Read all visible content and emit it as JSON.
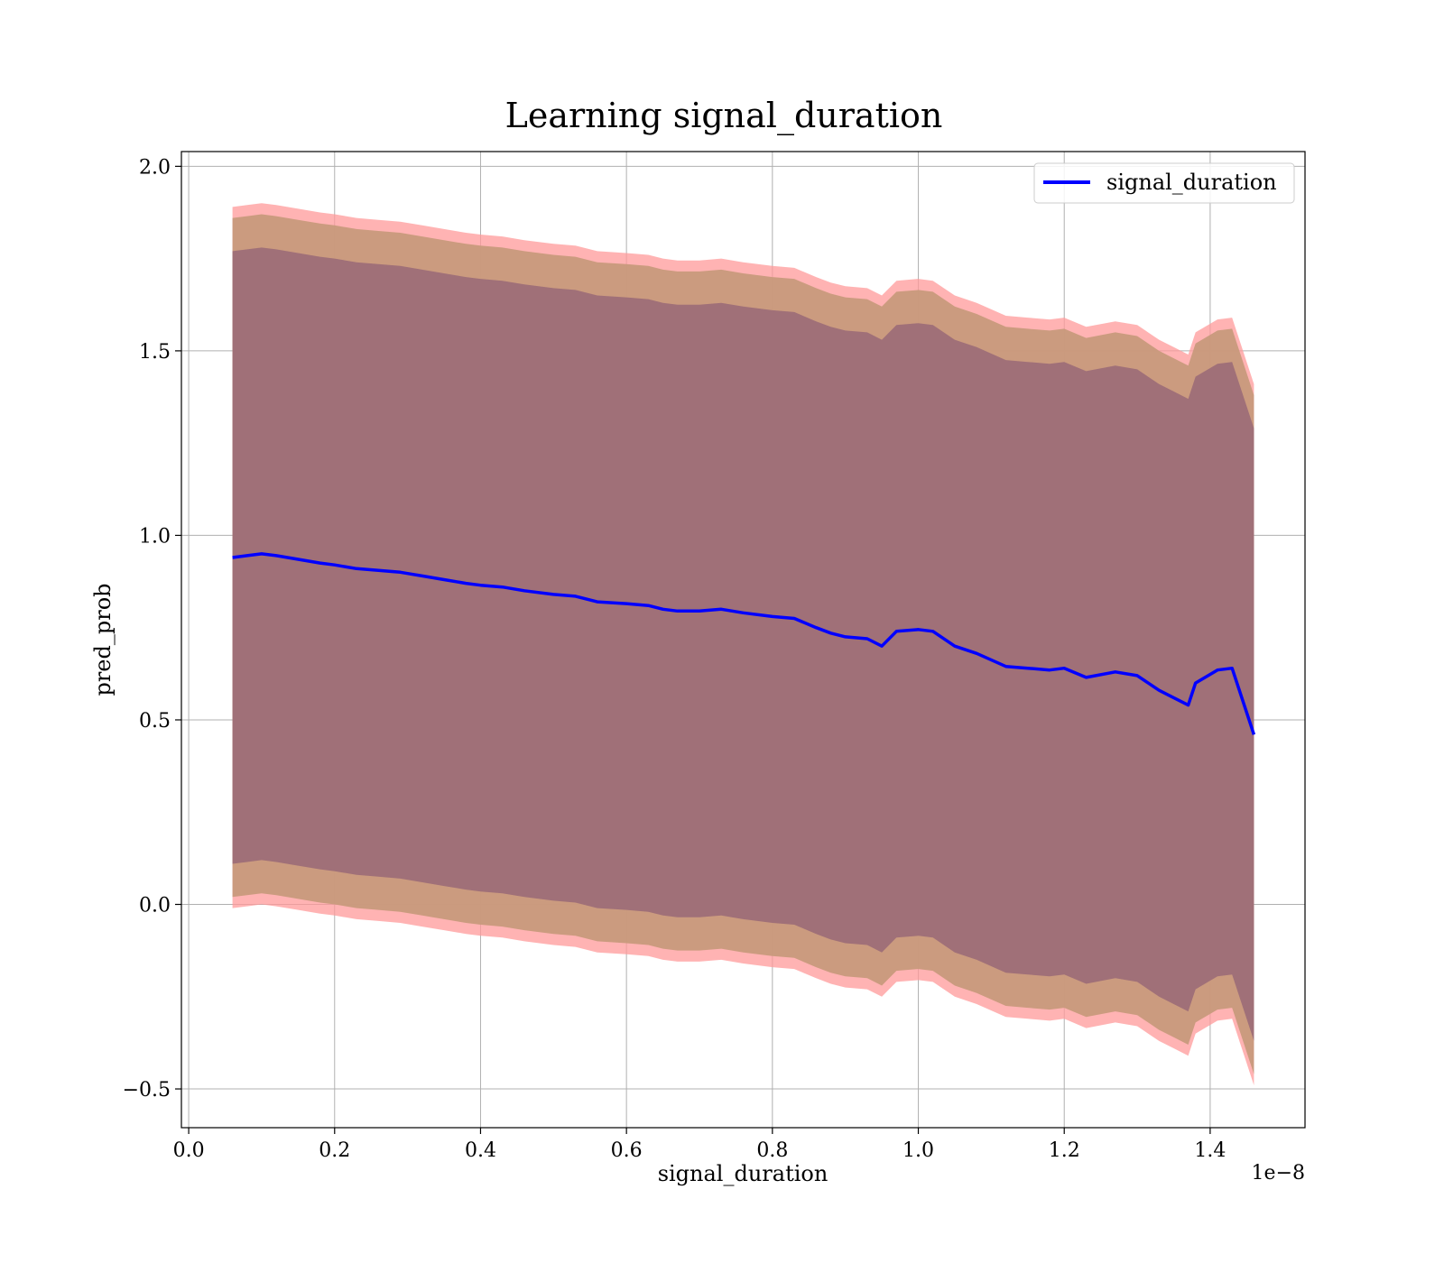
{
  "chart_data": {
    "type": "line",
    "title": "Learning signal_duration",
    "xlabel": "signal_duration",
    "ylabel": "pred_prob",
    "x_offset_label": "1e−8",
    "xlim": [
      -0.01,
      1.53
    ],
    "ylim": [
      -0.605,
      2.04
    ],
    "x_ticks": [
      0.0,
      0.2,
      0.4,
      0.6,
      0.8,
      1.0,
      1.2,
      1.4
    ],
    "x_tick_labels": [
      "0.0",
      "0.2",
      "0.4",
      "0.6",
      "0.8",
      "1.0",
      "1.2",
      "1.4"
    ],
    "y_ticks": [
      -0.5,
      0.0,
      0.5,
      1.0,
      1.5,
      2.0
    ],
    "y_tick_labels": [
      "−0.5",
      "0.0",
      "0.5",
      "1.0",
      "1.5",
      "2.0"
    ],
    "grid": true,
    "legend": {
      "position": "top-right",
      "entries": [
        "signal_duration"
      ]
    },
    "colors": {
      "line": "#0000ff",
      "band_outer": "#ff9999",
      "band_middle": "#c89a7c",
      "band_inner": "#a07078"
    },
    "series": [
      {
        "name": "signal_duration",
        "x": [
          0.06,
          0.08,
          0.1,
          0.12,
          0.15,
          0.18,
          0.2,
          0.23,
          0.26,
          0.29,
          0.32,
          0.35,
          0.38,
          0.4,
          0.43,
          0.46,
          0.5,
          0.53,
          0.56,
          0.6,
          0.63,
          0.65,
          0.67,
          0.7,
          0.73,
          0.76,
          0.8,
          0.83,
          0.86,
          0.88,
          0.9,
          0.93,
          0.95,
          0.97,
          1.0,
          1.02,
          1.05,
          1.08,
          1.12,
          1.15,
          1.18,
          1.2,
          1.23,
          1.27,
          1.3,
          1.33,
          1.35,
          1.37,
          1.38,
          1.41,
          1.43,
          1.46
        ],
        "y": [
          0.94,
          0.945,
          0.95,
          0.945,
          0.935,
          0.925,
          0.92,
          0.91,
          0.905,
          0.9,
          0.89,
          0.88,
          0.87,
          0.865,
          0.86,
          0.85,
          0.84,
          0.835,
          0.82,
          0.815,
          0.81,
          0.8,
          0.795,
          0.795,
          0.8,
          0.79,
          0.78,
          0.775,
          0.75,
          0.735,
          0.725,
          0.72,
          0.7,
          0.74,
          0.745,
          0.74,
          0.7,
          0.68,
          0.645,
          0.64,
          0.635,
          0.64,
          0.615,
          0.63,
          0.62,
          0.58,
          0.56,
          0.54,
          0.6,
          0.635,
          0.64,
          0.46
        ]
      }
    ],
    "bands": [
      {
        "name": "outer",
        "half_width": [
          0.95,
          0.95,
          0.95,
          0.95,
          0.95,
          0.95,
          0.95,
          0.95,
          0.95,
          0.95,
          0.95,
          0.95,
          0.95,
          0.95,
          0.95,
          0.95,
          0.95,
          0.95,
          0.95,
          0.95,
          0.95,
          0.95,
          0.95,
          0.95,
          0.95,
          0.95,
          0.95,
          0.95,
          0.95,
          0.95,
          0.95,
          0.95,
          0.95,
          0.95,
          0.95,
          0.95,
          0.95,
          0.95,
          0.95,
          0.95,
          0.95,
          0.95,
          0.95,
          0.95,
          0.95,
          0.95,
          0.95,
          0.95,
          0.95,
          0.95,
          0.95,
          0.95
        ]
      },
      {
        "name": "middle",
        "half_width": [
          0.92,
          0.92,
          0.92,
          0.92,
          0.92,
          0.92,
          0.92,
          0.92,
          0.92,
          0.92,
          0.92,
          0.92,
          0.92,
          0.92,
          0.92,
          0.92,
          0.92,
          0.92,
          0.92,
          0.92,
          0.92,
          0.92,
          0.92,
          0.92,
          0.92,
          0.92,
          0.92,
          0.92,
          0.92,
          0.92,
          0.92,
          0.92,
          0.92,
          0.92,
          0.92,
          0.92,
          0.92,
          0.92,
          0.92,
          0.92,
          0.92,
          0.92,
          0.92,
          0.92,
          0.92,
          0.92,
          0.92,
          0.92,
          0.92,
          0.92,
          0.92,
          0.92
        ]
      },
      {
        "name": "inner",
        "half_width": [
          0.83,
          0.83,
          0.83,
          0.83,
          0.83,
          0.83,
          0.83,
          0.83,
          0.83,
          0.83,
          0.83,
          0.83,
          0.83,
          0.83,
          0.83,
          0.83,
          0.83,
          0.83,
          0.83,
          0.83,
          0.83,
          0.83,
          0.83,
          0.83,
          0.83,
          0.83,
          0.83,
          0.83,
          0.83,
          0.83,
          0.83,
          0.83,
          0.83,
          0.83,
          0.83,
          0.83,
          0.83,
          0.83,
          0.83,
          0.83,
          0.83,
          0.83,
          0.83,
          0.83,
          0.83,
          0.83,
          0.83,
          0.83,
          0.83,
          0.83,
          0.83,
          0.83
        ]
      }
    ]
  }
}
